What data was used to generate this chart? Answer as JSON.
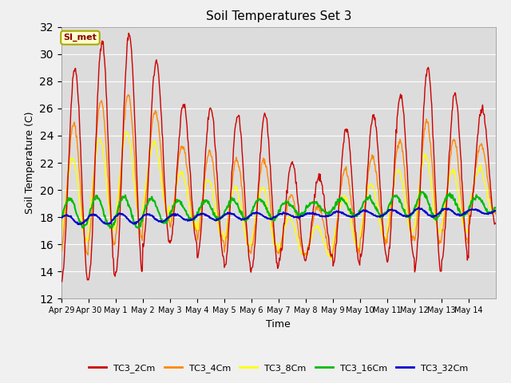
{
  "title": "Soil Temperatures Set 3",
  "xlabel": "Time",
  "ylabel": "Soil Temperature (C)",
  "ylim": [
    12,
    32
  ],
  "yticks": [
    12,
    14,
    16,
    18,
    20,
    22,
    24,
    26,
    28,
    30,
    32
  ],
  "background_color": "#e8e8e8",
  "plot_bg": "#dcdcdc",
  "fig_bg": "#f0f0f0",
  "series_colors": {
    "TC3_2Cm": "#cc0000",
    "TC3_4Cm": "#ff8800",
    "TC3_8Cm": "#ffff00",
    "TC3_16Cm": "#00bb00",
    "TC3_32Cm": "#0000cc"
  },
  "annotation_text": "SI_met",
  "annotation_color": "#8b0000",
  "annotation_bg": "#ffffcc",
  "annotation_border": "#aaaa00",
  "days": 16,
  "pts_per_day": 48,
  "peak_adjustments": [
    29,
    31,
    31.5,
    29.5,
    26.3,
    26,
    25.5,
    25.5,
    22,
    21,
    24.5,
    25.5,
    27,
    29,
    27,
    26
  ],
  "valley_adjustments": [
    13.2,
    13.5,
    14,
    16,
    16,
    15,
    14.2,
    14.2,
    14.8,
    15,
    14.5,
    15,
    15,
    14,
    15,
    17.5
  ],
  "tick_labels": [
    "Apr 29",
    "Apr 30",
    "May 1",
    "May 2",
    "May 3",
    "May 4",
    "May 5",
    "May 6",
    "May 7",
    "May 8",
    "May 9",
    "May 10",
    "May 11",
    "May 12",
    "May 13",
    "May 14"
  ],
  "legend_labels": [
    "TC3_2Cm",
    "TC3_4Cm",
    "TC3_8Cm",
    "TC3_16Cm",
    "TC3_32Cm"
  ]
}
